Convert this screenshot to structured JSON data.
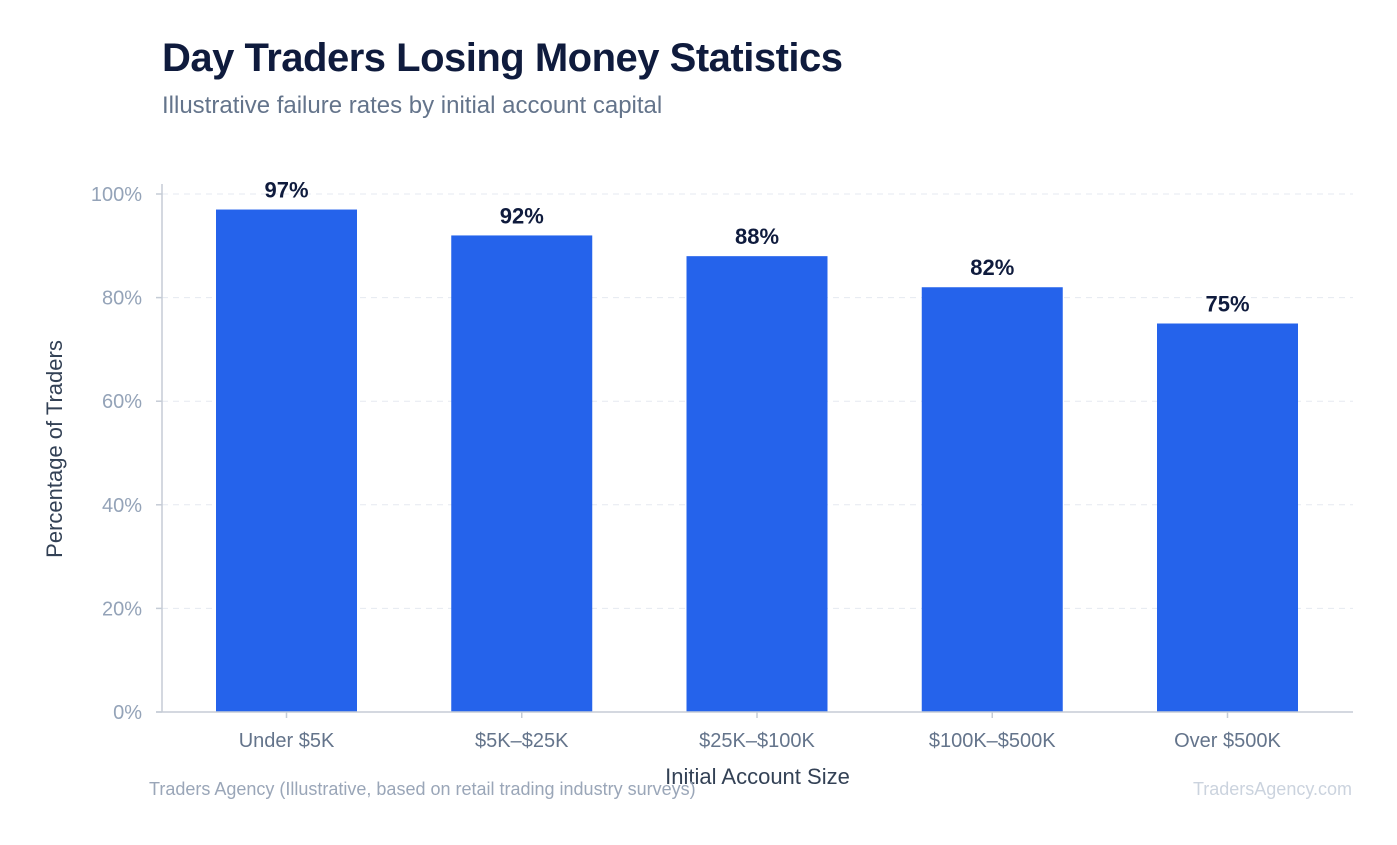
{
  "header": {
    "title": "Day Traders Losing Money Statistics",
    "subtitle": "Illustrative failure rates by initial account capital"
  },
  "footer": {
    "source": "Traders Agency (Illustrative, based on retail trading industry surveys)",
    "brand": "TradersAgency.com"
  },
  "chart_data": {
    "type": "bar",
    "title": "Day Traders Losing Money Statistics",
    "subtitle": "Illustrative failure rates by initial account capital",
    "xlabel": "Initial Account Size",
    "ylabel": "Percentage of Traders",
    "categories": [
      "Under $5K",
      "$5K–$25K",
      "$25K–$100K",
      "$100K–$500K",
      "Over $500K"
    ],
    "values": [
      97,
      92,
      88,
      82,
      75
    ],
    "value_labels": [
      "97%",
      "92%",
      "88%",
      "82%",
      "75%"
    ],
    "ylim": [
      0,
      100
    ],
    "yticks": [
      0,
      20,
      40,
      60,
      80,
      100
    ],
    "ytick_labels": [
      "0%",
      "20%",
      "40%",
      "60%",
      "80%",
      "100%"
    ],
    "grid": true,
    "legend": "none",
    "colors": {
      "bar": "#2563eb",
      "value_label": "#0f1b3d",
      "tick_label": "#94a3b8",
      "category_label": "#64748b",
      "axis_title": "#334155",
      "grid": "#e5e9f0",
      "axis": "#c5ccd6"
    }
  }
}
